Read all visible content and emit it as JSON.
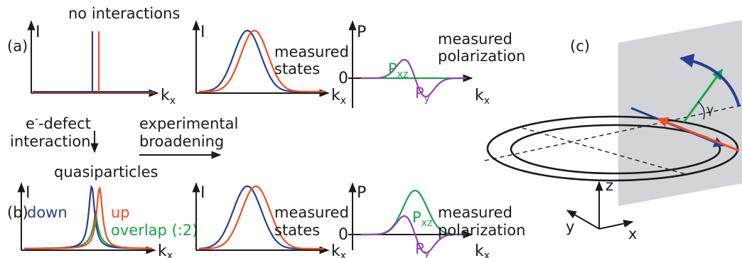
{
  "colors": {
    "blue": "#283d94",
    "orange": "#f04e23",
    "green": "#1aa34a",
    "purple": "#8e44ad",
    "plane": "#d2d4d8",
    "axis": "#1a1a1a"
  },
  "panel_a": {
    "label": "(a)",
    "title": "no interactions"
  },
  "panel_b": {
    "label": "(b)",
    "title": "quasiparticles",
    "down": "down",
    "up": "up",
    "overlap": "overlap (:2)"
  },
  "panel_c": {
    "label": "(c)",
    "angle": "γ",
    "axis_x": "x",
    "axis_y": "y",
    "axis_z": "z"
  },
  "axes": {
    "intensity": "I",
    "polarization": "P",
    "k": "k",
    "k_sub": "x",
    "zero": "0"
  },
  "measured": {
    "states_line1": "measured",
    "states_line2": "states",
    "pol_line1": "measured",
    "pol_line2": "polarization"
  },
  "pol_labels": {
    "pxz": "P",
    "pxz_sub": "xz",
    "py": "P",
    "py_sub": "y"
  },
  "arrows": {
    "defect_sup": "-",
    "defect_line1_prefix": "e",
    "defect_line1_rest": "-defect",
    "defect_line2": "interaction",
    "broadening_line1": "experimental",
    "broadening_line2": "broadening"
  }
}
